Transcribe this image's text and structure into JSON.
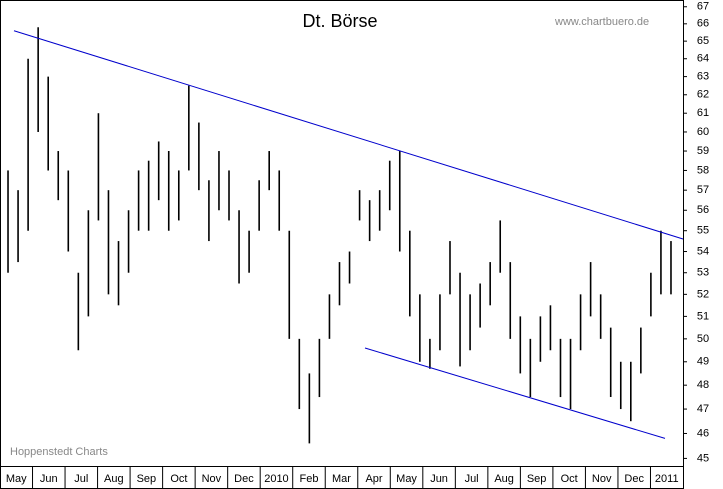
{
  "chart_data": {
    "type": "ohlc",
    "title": "Dt. Börse",
    "source": "www.chartbuero.de",
    "credit": "Hoppenstedt Charts",
    "categories": [
      "May",
      "Jun",
      "Jul",
      "Aug",
      "Sep",
      "Oct",
      "Nov",
      "Dec",
      "2010",
      "Feb",
      "Mar",
      "Apr",
      "May",
      "Jun",
      "Jul",
      "Aug",
      "Sep",
      "Oct",
      "Nov",
      "Dec",
      "2011"
    ],
    "high": [
      58,
      57,
      64,
      65.8,
      63,
      59,
      58,
      53,
      56,
      61,
      57,
      54.5,
      56,
      58,
      58.5,
      59.5,
      59,
      58,
      62.5,
      60.5,
      57.5,
      59,
      58,
      56,
      55,
      57.5,
      59,
      58,
      55,
      50,
      48.5,
      50,
      52,
      53.5,
      54,
      57,
      56.5,
      57,
      58.5,
      59,
      55,
      52,
      50,
      52,
      54.5,
      53,
      52,
      52.5,
      53.5,
      55.5,
      53.5,
      51,
      50,
      51,
      51.5,
      50,
      50,
      52,
      53.5,
      52,
      50.5,
      49,
      49,
      50.5,
      53,
      55,
      54.5
    ],
    "low": [
      53,
      53.5,
      55,
      60,
      58,
      56.5,
      54,
      49.5,
      51,
      55.5,
      52,
      51.5,
      53,
      55,
      55,
      56.5,
      55,
      55.5,
      58,
      57,
      54.5,
      56,
      55.5,
      52.5,
      53,
      55,
      57,
      55,
      50,
      47,
      45.6,
      47.5,
      50,
      51.5,
      52.5,
      55.5,
      54.5,
      55,
      56,
      54,
      51,
      49,
      48.7,
      49.5,
      52,
      48.8,
      49.5,
      50.5,
      51.5,
      53,
      50,
      48.5,
      47.5,
      49,
      49.5,
      47.5,
      47,
      49.5,
      51,
      50,
      47.5,
      47,
      46.5,
      48.5,
      51,
      52,
      52
    ],
    "color": "#000000",
    "trendlines": [
      {
        "start": 65.6,
        "end": 54.6,
        "color": "#0000cc"
      },
      {
        "start": 49.6,
        "end": 45.8,
        "color": "#0000cc"
      }
    ],
    "log_scale": true,
    "grid": false,
    "ylim": [
      44.7,
      67.4
    ],
    "yticks": [
      45,
      46,
      47,
      48,
      49,
      50,
      51,
      52,
      53,
      54,
      55,
      56,
      57,
      58,
      59,
      60,
      61,
      62,
      63,
      64,
      65,
      66,
      67
    ]
  }
}
